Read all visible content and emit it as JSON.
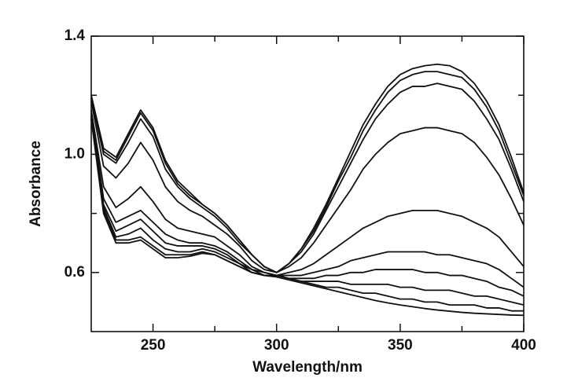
{
  "chart_data": {
    "type": "line",
    "xlabel": "Wavelength/nm",
    "ylabel": "Absorbance",
    "color": "#111111",
    "x": [
      225,
      230,
      235,
      240,
      245,
      250,
      255,
      260,
      265,
      270,
      275,
      280,
      285,
      290,
      295,
      300,
      305,
      310,
      315,
      320,
      325,
      330,
      335,
      340,
      345,
      350,
      355,
      360,
      365,
      370,
      375,
      380,
      385,
      390,
      395,
      400
    ],
    "series": [
      {
        "values": [
          1.2,
          1.02,
          0.99,
          1.07,
          1.15,
          1.09,
          0.98,
          0.91,
          0.87,
          0.83,
          0.8,
          0.76,
          0.71,
          0.66,
          0.62,
          0.6,
          0.63,
          0.68,
          0.75,
          0.83,
          0.92,
          1.01,
          1.1,
          1.17,
          1.23,
          1.27,
          1.29,
          1.3,
          1.305,
          1.3,
          1.28,
          1.24,
          1.18,
          1.1,
          0.99,
          0.87
        ]
      },
      {
        "values": [
          1.2,
          1.01,
          0.98,
          1.06,
          1.14,
          1.08,
          0.97,
          0.9,
          0.86,
          0.83,
          0.8,
          0.76,
          0.71,
          0.66,
          0.62,
          0.6,
          0.63,
          0.68,
          0.74,
          0.82,
          0.91,
          0.99,
          1.08,
          1.15,
          1.21,
          1.25,
          1.27,
          1.28,
          1.28,
          1.27,
          1.26,
          1.22,
          1.16,
          1.08,
          0.97,
          0.86
        ]
      },
      {
        "values": [
          1.19,
          1.0,
          0.97,
          1.04,
          1.12,
          1.06,
          0.95,
          0.89,
          0.85,
          0.82,
          0.79,
          0.75,
          0.7,
          0.66,
          0.62,
          0.6,
          0.63,
          0.67,
          0.73,
          0.81,
          0.89,
          0.97,
          1.05,
          1.12,
          1.17,
          1.21,
          1.23,
          1.23,
          1.24,
          1.23,
          1.22,
          1.18,
          1.12,
          1.05,
          0.95,
          0.84
        ]
      },
      {
        "values": [
          1.18,
          0.96,
          0.92,
          0.97,
          1.04,
          0.98,
          0.89,
          0.84,
          0.81,
          0.79,
          0.76,
          0.73,
          0.69,
          0.64,
          0.61,
          0.6,
          0.62,
          0.65,
          0.7,
          0.76,
          0.82,
          0.88,
          0.95,
          1.0,
          1.04,
          1.07,
          1.08,
          1.09,
          1.09,
          1.08,
          1.07,
          1.04,
          0.99,
          0.93,
          0.85,
          0.76
        ]
      },
      {
        "values": [
          1.15,
          0.89,
          0.82,
          0.85,
          0.89,
          0.84,
          0.78,
          0.75,
          0.74,
          0.73,
          0.72,
          0.69,
          0.66,
          0.62,
          0.6,
          0.59,
          0.6,
          0.61,
          0.63,
          0.66,
          0.69,
          0.72,
          0.75,
          0.77,
          0.79,
          0.8,
          0.81,
          0.81,
          0.81,
          0.8,
          0.79,
          0.77,
          0.75,
          0.72,
          0.67,
          0.62
        ]
      },
      {
        "values": [
          1.14,
          0.85,
          0.77,
          0.79,
          0.81,
          0.77,
          0.73,
          0.71,
          0.7,
          0.7,
          0.69,
          0.67,
          0.64,
          0.61,
          0.6,
          0.59,
          0.59,
          0.59,
          0.6,
          0.61,
          0.62,
          0.64,
          0.65,
          0.66,
          0.67,
          0.67,
          0.67,
          0.67,
          0.66,
          0.66,
          0.65,
          0.64,
          0.63,
          0.61,
          0.58,
          0.55
        ]
      },
      {
        "values": [
          1.13,
          0.83,
          0.74,
          0.76,
          0.78,
          0.74,
          0.7,
          0.69,
          0.69,
          0.69,
          0.68,
          0.66,
          0.63,
          0.61,
          0.59,
          0.59,
          0.58,
          0.58,
          0.58,
          0.59,
          0.59,
          0.6,
          0.6,
          0.61,
          0.61,
          0.61,
          0.61,
          0.6,
          0.6,
          0.59,
          0.59,
          0.58,
          0.57,
          0.55,
          0.54,
          0.52
        ]
      },
      {
        "values": [
          1.13,
          0.82,
          0.72,
          0.73,
          0.75,
          0.71,
          0.68,
          0.67,
          0.67,
          0.68,
          0.67,
          0.65,
          0.63,
          0.6,
          0.59,
          0.59,
          0.58,
          0.57,
          0.57,
          0.57,
          0.57,
          0.56,
          0.56,
          0.56,
          0.56,
          0.55,
          0.55,
          0.54,
          0.54,
          0.54,
          0.53,
          0.52,
          0.52,
          0.51,
          0.5,
          0.49
        ]
      },
      {
        "values": [
          1.12,
          0.81,
          0.71,
          0.71,
          0.72,
          0.69,
          0.66,
          0.66,
          0.66,
          0.67,
          0.66,
          0.64,
          0.62,
          0.6,
          0.59,
          0.59,
          0.58,
          0.57,
          0.56,
          0.55,
          0.55,
          0.54,
          0.53,
          0.53,
          0.52,
          0.51,
          0.51,
          0.5,
          0.5,
          0.49,
          0.49,
          0.49,
          0.48,
          0.48,
          0.47,
          0.47
        ]
      },
      {
        "values": [
          1.12,
          0.8,
          0.7,
          0.7,
          0.71,
          0.68,
          0.65,
          0.65,
          0.655,
          0.665,
          0.66,
          0.64,
          0.62,
          0.6,
          0.59,
          0.585,
          0.575,
          0.565,
          0.555,
          0.545,
          0.535,
          0.525,
          0.515,
          0.505,
          0.497,
          0.49,
          0.484,
          0.478,
          0.473,
          0.469,
          0.465,
          0.462,
          0.46,
          0.458,
          0.456,
          0.455
        ]
      }
    ],
    "xlim": [
      225,
      400
    ],
    "xticks": [
      250,
      300,
      350,
      400
    ],
    "xminor_ticks": [
      275,
      325,
      375
    ],
    "ylim": [
      0.4,
      1.4
    ],
    "yticks": [
      0.6,
      {
        "value": 1,
        "label": "1.0"
      },
      1.4
    ],
    "yminor_ticks": [
      0.8,
      1.2
    ],
    "grid": false
  }
}
